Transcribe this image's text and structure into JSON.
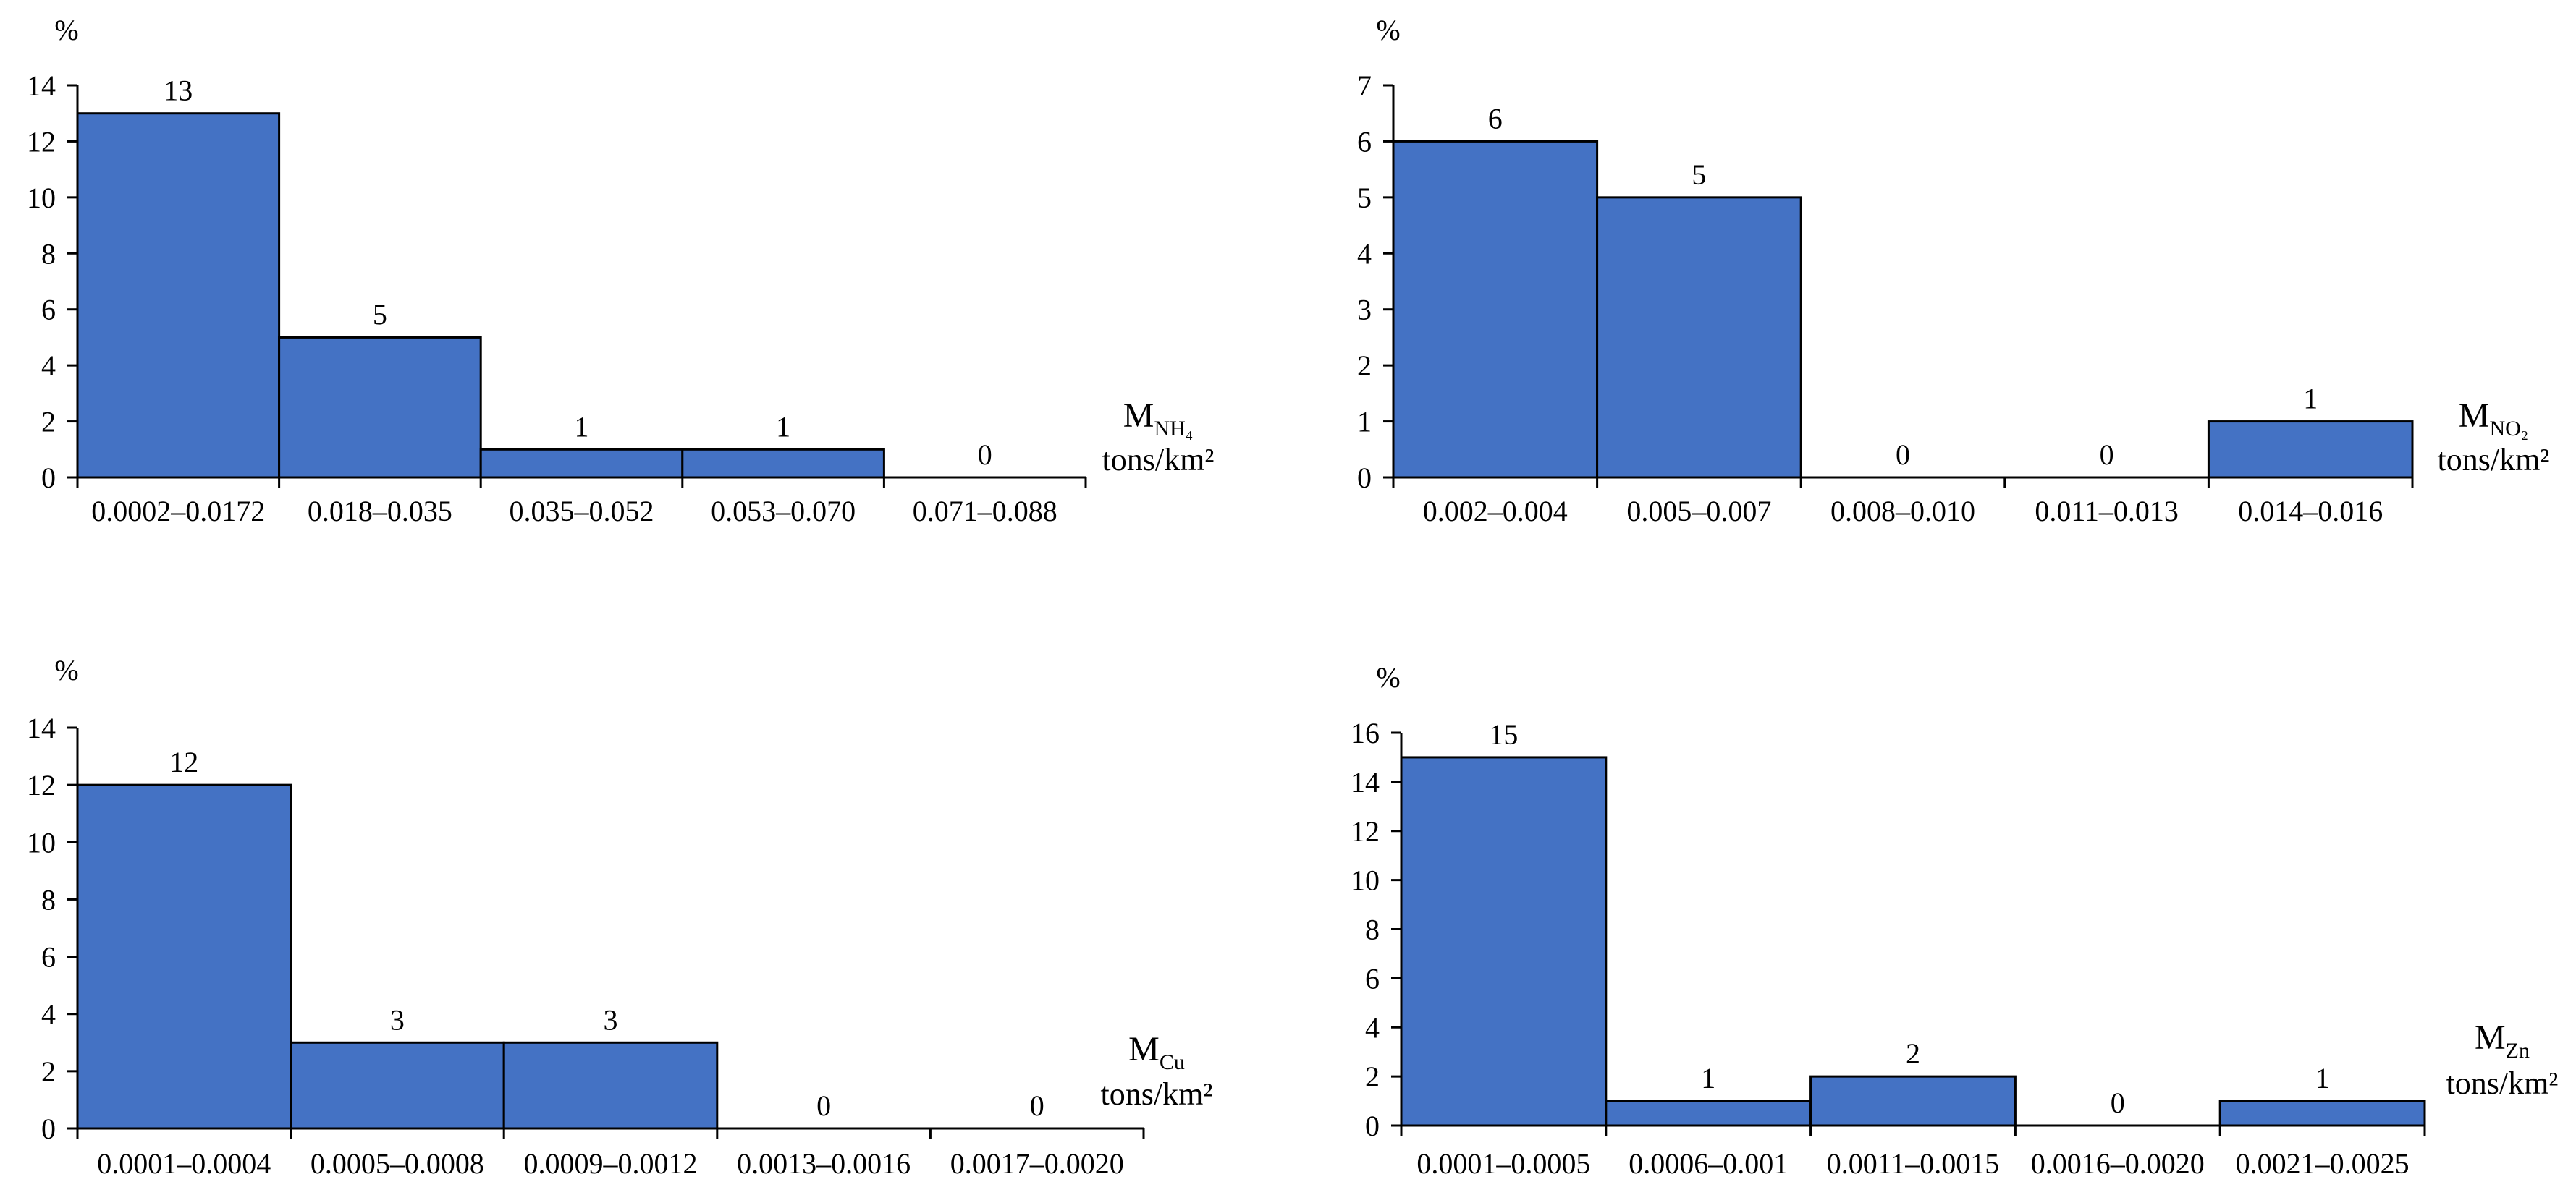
{
  "chart_data": [
    {
      "type": "bar",
      "ylabel": "%",
      "xlabel_main": "M",
      "xlabel_sub": "NH₄",
      "xlabel_unit": "tons/km²",
      "categories": [
        "0.0002–0.0172",
        "0.018–0.035",
        "0.035–0.052",
        "0.053–0.070",
        "0.071–0.088"
      ],
      "values": [
        13,
        5,
        1,
        1,
        0
      ],
      "ylim": [
        0,
        14
      ],
      "yticks": [
        0,
        2,
        4,
        6,
        8,
        10,
        12,
        14
      ],
      "bar_color": "#4472c4"
    },
    {
      "type": "bar",
      "ylabel": "%",
      "xlabel_main": "M",
      "xlabel_sub": "NO₂",
      "xlabel_unit": "tons/km²",
      "categories": [
        "0.002–0.004",
        "0.005–0.007",
        "0.008–0.010",
        "0.011–0.013",
        "0.014–0.016"
      ],
      "values": [
        6,
        5,
        0,
        0,
        1
      ],
      "ylim": [
        0,
        7
      ],
      "yticks": [
        0,
        1,
        2,
        3,
        4,
        5,
        6,
        7
      ],
      "bar_color": "#4472c4"
    },
    {
      "type": "bar",
      "ylabel": "%",
      "xlabel_main": "M",
      "xlabel_sub": "Cu",
      "xlabel_unit": "tons/km²",
      "categories": [
        "0.0001–0.0004",
        "0.0005–0.0008",
        "0.0009–0.0012",
        "0.0013–0.0016",
        "0.0017–0.0020"
      ],
      "values": [
        12,
        3,
        3,
        0,
        0
      ],
      "ylim": [
        0,
        14
      ],
      "yticks": [
        0,
        2,
        4,
        6,
        8,
        10,
        12,
        14
      ],
      "bar_color": "#4472c4"
    },
    {
      "type": "bar",
      "ylabel": "%",
      "xlabel_main": "M",
      "xlabel_sub": "Zn",
      "xlabel_unit": "tons/km²",
      "categories": [
        "0.0001–0.0005",
        "0.0006–0.001",
        "0.0011–0.0015",
        "0.0016–0.0020",
        "0.0021–0.0025"
      ],
      "values": [
        15,
        1,
        2,
        0,
        1
      ],
      "ylim": [
        0,
        16
      ],
      "yticks": [
        0,
        2,
        4,
        6,
        8,
        10,
        12,
        14,
        16
      ],
      "bar_color": "#4472c4"
    }
  ]
}
